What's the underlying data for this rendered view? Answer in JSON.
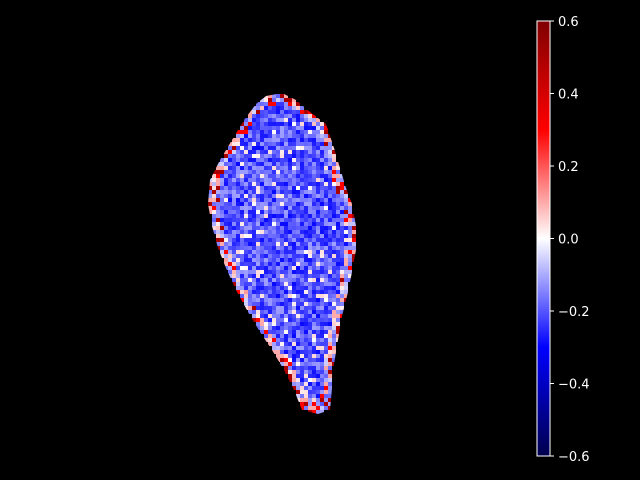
{
  "chart_data": {
    "type": "heatmap",
    "title": "",
    "xlabel": "",
    "ylabel": "",
    "axes_visible": false,
    "background": "#000000",
    "colormap": "seismic",
    "colormap_stops": [
      "#00004d",
      "#0000ff",
      "#ffffff",
      "#ff0000",
      "#800000"
    ],
    "vmin": -0.6,
    "vmax": 0.6,
    "colorbar": {
      "position": "right",
      "ticks": [
        0.6,
        0.4,
        0.2,
        0.0,
        -0.2,
        -0.4,
        -0.6
      ],
      "tick_labels": [
        "0.6",
        "0.4",
        "0.2",
        "0.0",
        "−0.2",
        "−0.4",
        "−0.6"
      ]
    },
    "region_summary": {
      "interior_value": -0.2,
      "edge_values": [
        0.1,
        0.3,
        0.5
      ]
    }
  }
}
